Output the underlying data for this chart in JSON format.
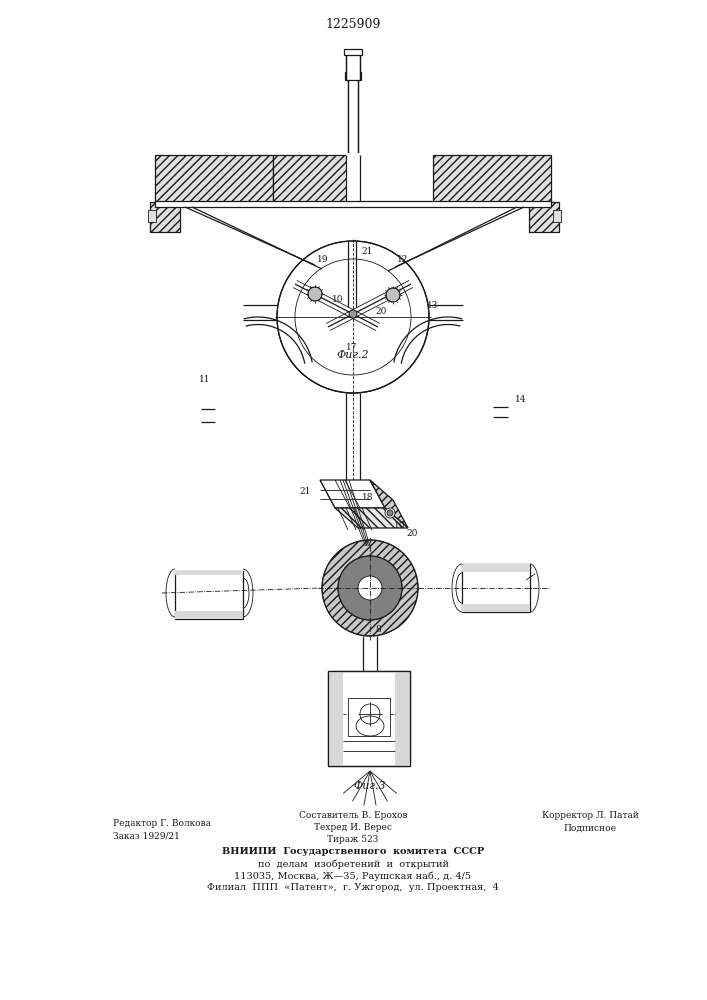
{
  "patent_number": "1225909",
  "fig2_label": "Фиг.2",
  "fig3_label": "Фиг.3",
  "bg_color": "#ffffff",
  "line_color": "#1a1a1a",
  "text_color": "#1a1a1a"
}
